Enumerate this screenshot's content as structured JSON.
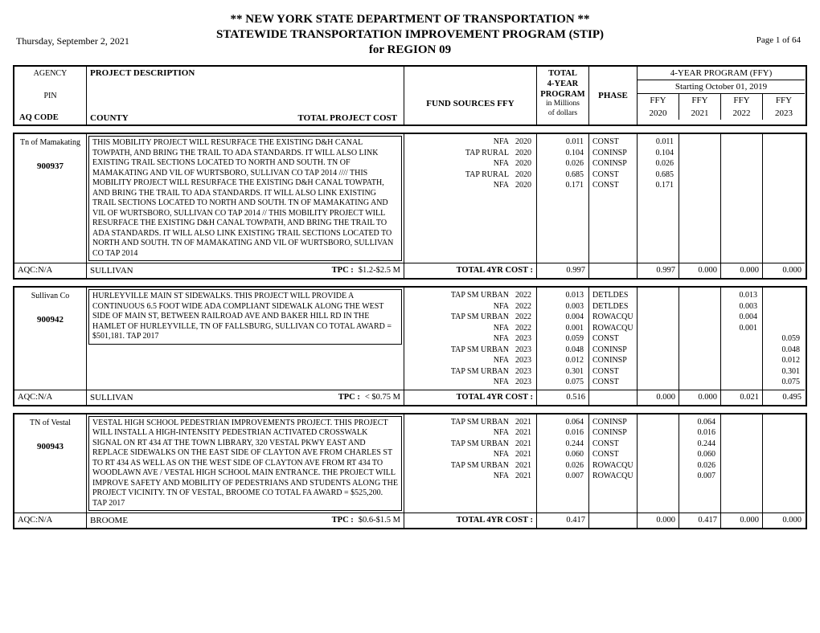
{
  "header": {
    "date": "Thursday, September 2, 2021",
    "title1": "** NEW YORK STATE DEPARTMENT OF TRANSPORTATION **",
    "title2": "STATEWIDE TRANSPORTATION IMPROVEMENT PROGRAM (STIP)",
    "title3": "for REGION 09",
    "page": "Page 1 of 64"
  },
  "colhead": {
    "agency": "AGENCY",
    "pin": "PIN",
    "aqcode": "AQ CODE",
    "desc": "PROJECT DESCRIPTION",
    "county": "COUNTY",
    "tpc": "TOTAL PROJECT COST",
    "fund": "FUND SOURCES  FFY",
    "total_l1": "TOTAL",
    "total_l2": "4-YEAR",
    "total_l3": "PROGRAM",
    "total_l4": "in Millions",
    "total_l5": "of dollars",
    "phase": "PHASE",
    "ffy_title": "4-YEAR PROGRAM (FFY)",
    "ffy_sub": "Starting October 01, 2019",
    "ffy_lab": "FFY",
    "y2020": "2020",
    "y2021": "2021",
    "y2022": "2022",
    "y2023": "2023"
  },
  "projects": [
    {
      "agency": "Tn of Mamakating",
      "pin": "900937",
      "desc": "THIS MOBILITY PROJECT WILL RESURFACE THE EXISTING D&H CANAL TOWPATH, AND BRING THE TRAIL TO ADA STANDARDS. IT WILL ALSO LINK EXISTING TRAIL SECTIONS LOCATED TO NORTH AND SOUTH. TN OF MAMAKATING AND VIL OF WURTSBORO, SULLIVAN CO  TAP 2014 //// THIS MOBILITY PROJECT WILL RESURFACE THE EXISTING D&H CANAL TOWPATH, AND BRING THE TRAIL TO ADA STANDARDS. IT WILL ALSO LINK EXISTING TRAIL SECTIONS LOCATED TO NORTH AND SOUTH. TN OF MAMAKATING AND VIL OF WURTSBORO, SULLIVAN CO TAP 2014  // THIS MOBILITY PROJECT WILL RESURFACE THE EXISTING D&H CANAL TOWPATH, AND BRING THE TRAIL TO ADA STANDARDS. IT WILL ALSO LINK EXISTING TRAIL SECTIONS LOCATED TO NORTH AND SOUTH. TN OF MAMAKATING AND VIL OF WURTSBORO, SULLIVAN CO TAP 2014",
      "fund": [
        {
          "src": "NFA",
          "year": "2020"
        },
        {
          "src": "TAP RURAL",
          "year": "2020"
        },
        {
          "src": "NFA",
          "year": "2020"
        },
        {
          "src": "TAP RURAL",
          "year": "2020"
        },
        {
          "src": "NFA",
          "year": "2020"
        }
      ],
      "total": [
        "0.011",
        "0.104",
        "0.026",
        "0.685",
        "0.171"
      ],
      "phase": [
        "CONST",
        "CONINSP",
        "CONINSP",
        "CONST",
        "CONST"
      ],
      "ffy2020": [
        "0.011",
        "0.104",
        "0.026",
        "0.685",
        "0.171"
      ],
      "ffy2021": [],
      "ffy2022": [],
      "ffy2023": [],
      "aqc": "AQC:N/A",
      "county": "SULLIVAN",
      "tpc_lab": "TPC :",
      "tpc_val": "$1.2-$2.5 M",
      "t4_lab": "TOTAL 4YR  COST :",
      "t4_val": "0.997",
      "sum2020": "0.997",
      "sum2021": "0.000",
      "sum2022": "0.000",
      "sum2023": "0.000"
    },
    {
      "agency": "Sullivan Co",
      "pin": "900942",
      "desc": "HURLEYVILLE MAIN ST SIDEWALKS.  THIS PROJECT WILL PROVIDE A CONTINUOUS 6.5 FOOT WIDE ADA COMPLIANT SIDEWALK ALONG THE WEST SIDE OF MAIN ST, BETWEEN RAILROAD AVE AND BAKER HILL RD IN THE HAMLET OF HURLEYVILLE, TN OF FALLSBURG, SULLIVAN CO  TOTAL AWARD = $501,181.  TAP 2017",
      "fund": [
        {
          "src": "TAP SM URBAN",
          "year": "2022"
        },
        {
          "src": "NFA",
          "year": "2022"
        },
        {
          "src": "TAP SM URBAN",
          "year": "2022"
        },
        {
          "src": "NFA",
          "year": "2022"
        },
        {
          "src": "NFA",
          "year": "2023"
        },
        {
          "src": "TAP SM URBAN",
          "year": "2023"
        },
        {
          "src": "NFA",
          "year": "2023"
        },
        {
          "src": "TAP SM URBAN",
          "year": "2023"
        },
        {
          "src": "NFA",
          "year": "2023"
        }
      ],
      "total": [
        "0.013",
        "0.003",
        "0.004",
        "0.001",
        "0.059",
        "0.048",
        "0.012",
        "0.301",
        "0.075"
      ],
      "phase": [
        "DETLDES",
        "DETLDES",
        "ROWACQU",
        "ROWACQU",
        "CONST",
        "CONINSP",
        "CONINSP",
        "CONST",
        "CONST"
      ],
      "ffy2020": [],
      "ffy2021": [],
      "ffy2022": [
        "0.013",
        "0.003",
        "0.004",
        "0.001"
      ],
      "ffy2023": [
        "",
        "",
        "",
        "",
        "0.059",
        "0.048",
        "0.012",
        "0.301",
        "0.075"
      ],
      "aqc": "AQC:N/A",
      "county": "SULLIVAN",
      "tpc_lab": "TPC :",
      "tpc_val": "< $0.75 M",
      "t4_lab": "TOTAL 4YR  COST :",
      "t4_val": "0.516",
      "sum2020": "0.000",
      "sum2021": "0.000",
      "sum2022": "0.021",
      "sum2023": "0.495"
    },
    {
      "agency": "TN of Vestal",
      "pin": "900943",
      "desc": "VESTAL HIGH SCHOOL PEDESTRIAN IMPROVEMENTS PROJECT.  THIS PROJECT WILL INSTALL A HIGH-INTENSITY PEDESTRIAN ACTIVATED CROSSWALK SIGNAL ON RT 434 AT THE TOWN LIBRARY, 320 VESTAL PKWY EAST AND REPLACE SIDEWALKS ON THE EAST SIDE OF CLAYTON AVE FROM CHARLES ST TO RT 434 AS WELL AS ON THE WEST SIDE OF CLAYTON AVE FROM RT 434 TO WOODLAWN AVE / VESTAL HIGH SCHOOL MAIN ENTRANCE.  THE PROJECT WILL IMPROVE SAFETY AND MOBILITY OF PEDESTRIANS AND STUDENTS ALONG THE PROJECT VICINITY.  TN OF VESTAL, BROOME CO  TOTAL FA AWARD = $525,200.  TAP 2017",
      "fund": [
        {
          "src": "TAP SM URBAN",
          "year": "2021"
        },
        {
          "src": "NFA",
          "year": "2021"
        },
        {
          "src": "TAP SM URBAN",
          "year": "2021"
        },
        {
          "src": "NFA",
          "year": "2021"
        },
        {
          "src": "TAP SM URBAN",
          "year": "2021"
        },
        {
          "src": "NFA",
          "year": "2021"
        }
      ],
      "total": [
        "0.064",
        "0.016",
        "0.244",
        "0.060",
        "0.026",
        "0.007"
      ],
      "phase": [
        "CONINSP",
        "CONINSP",
        "CONST",
        "CONST",
        "ROWACQU",
        "ROWACQU"
      ],
      "ffy2020": [],
      "ffy2021": [
        "0.064",
        "0.016",
        "0.244",
        "0.060",
        "0.026",
        "0.007"
      ],
      "ffy2022": [],
      "ffy2023": [],
      "aqc": "AQC:N/A",
      "county": "BROOME",
      "tpc_lab": "TPC :",
      "tpc_val": "$0.6-$1.5 M",
      "t4_lab": "TOTAL 4YR  COST :",
      "t4_val": "0.417",
      "sum2020": "0.000",
      "sum2021": "0.417",
      "sum2022": "0.000",
      "sum2023": "0.000"
    }
  ]
}
